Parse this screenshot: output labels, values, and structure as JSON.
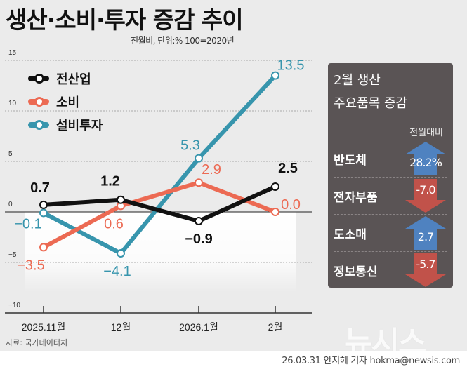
{
  "title": "생산·소비·투자 증감 추이",
  "unit_note": "전월비, 단위:% 100=2020년",
  "source": "자료: 국가데이터처",
  "footer": "26.03.31 안지혜 기자 hokma@newsis.com",
  "logo": "뉴시스",
  "chart_data": {
    "type": "line",
    "categories": [
      "2025.11월",
      "12월",
      "2026.1월",
      "2월"
    ],
    "ylim": [
      -10,
      15
    ],
    "yticks": [
      "15",
      "10",
      "5",
      "0",
      "-5",
      "-10"
    ],
    "grid": true,
    "legend_placement": "top-left",
    "series": [
      {
        "name": "전산업",
        "color": "#111111",
        "values": [
          0.7,
          1.2,
          -0.9,
          2.5
        ],
        "labels": [
          "0.7",
          "1.2",
          "-0.9",
          "2.5"
        ]
      },
      {
        "name": "소비",
        "color": "#ec6a53",
        "values": [
          -3.5,
          0.6,
          2.9,
          0.0
        ],
        "labels": [
          "-3.5",
          "0.6",
          "2.9",
          "0.0"
        ]
      },
      {
        "name": "설비투자",
        "color": "#3795ad",
        "values": [
          -0.1,
          -4.1,
          5.3,
          13.5
        ],
        "labels": [
          "-0.1",
          "-4.1",
          "5.3",
          "13.5"
        ]
      }
    ]
  },
  "panel": {
    "title_line1": "2월 생산",
    "title_line2": "주요품목 증감",
    "subtitle": "전월대비",
    "up_color": "#4f82c0",
    "down_color": "#c1524a",
    "items": [
      {
        "label": "반도체",
        "value": "28.2%",
        "direction": "up"
      },
      {
        "label": "전자부품",
        "value": "-7.0",
        "direction": "down"
      },
      {
        "label": "도소매",
        "value": "2.7",
        "direction": "up"
      },
      {
        "label": "정보통신",
        "value": "-5.7",
        "direction": "down"
      }
    ]
  }
}
